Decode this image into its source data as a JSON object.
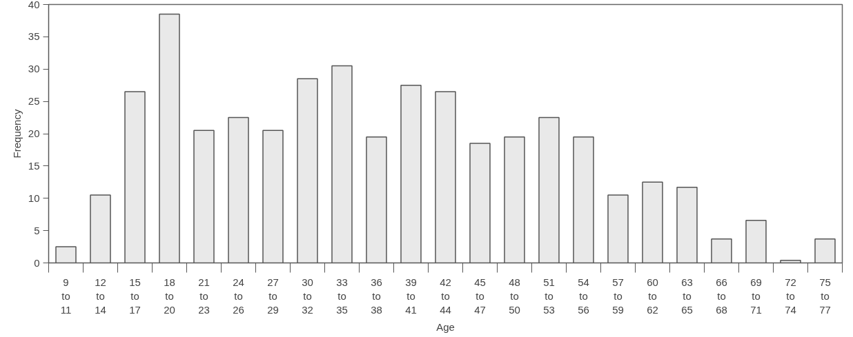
{
  "chart_data": {
    "type": "bar",
    "xlabel": "Age",
    "ylabel": "Frequency",
    "categories": [
      "9 to 11",
      "12 to 14",
      "15 to 17",
      "18 to 20",
      "21 to 23",
      "24 to 26",
      "27 to 29",
      "30 to 32",
      "33 to 35",
      "36 to 38",
      "39 to 41",
      "42 to 44",
      "45 to 47",
      "48 to 50",
      "51 to 53",
      "54 to 56",
      "57 to 59",
      "60 to 62",
      "63 to 65",
      "66 to 68",
      "69 to 71",
      "72 to 74",
      "75 to 77"
    ],
    "values": [
      2.5,
      10.5,
      26.5,
      38.5,
      20.5,
      22.5,
      20.5,
      28.5,
      30.5,
      19.5,
      27.5,
      26.5,
      18.5,
      19.5,
      22.5,
      19.5,
      10.5,
      12.5,
      11.7,
      3.7,
      6.6,
      0.4,
      3.7
    ],
    "color": "#e9e9e9",
    "ylim": [
      0,
      40
    ],
    "yticks": [
      0,
      5,
      10,
      15,
      20,
      25,
      30,
      35,
      40
    ],
    "grid": false
  }
}
